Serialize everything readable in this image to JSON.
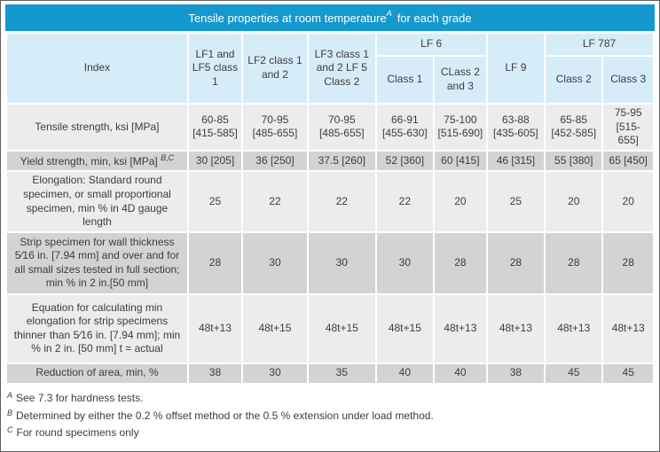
{
  "colors": {
    "title_bar": "#1598CD",
    "header_cell": "#D6EDF9",
    "row_light": "#ECECEC",
    "row_dark": "#D5D3D1",
    "text": "#3C3C3C",
    "title_text": "#FFFFFF"
  },
  "title": {
    "prefix": "Tensile properties at room temperature",
    "superscript": "A",
    "suffix": "for each grade"
  },
  "table": {
    "index_header": "Index",
    "top_headers": {
      "lf1": "LF1 and LF5 class 1",
      "lf2": "LF2 class 1 and 2",
      "lf3": "LF3 class 1 and 2 LF 5 Class 2",
      "lf6_group": "LF 6",
      "lf9": "LF 9",
      "lf787_group": "LF 787"
    },
    "sub_headers": {
      "lf6_class1": "Class 1",
      "lf6_class2_3": "CLass 2 and 3",
      "lf787_class2": "Class 2",
      "lf787_class3": "Class 3"
    },
    "rows": [
      {
        "label": "Tensile strength, ksi [MPa]",
        "label_sup": "",
        "shade": "light",
        "values": [
          "60-85\n[415-585]",
          "70-95\n[485-655]",
          "70-95\n[485-655]",
          "66-91\n[455-630]",
          "75-100\n[515-690]",
          "63-88\n[435-605]",
          "65-85\n[452-585]",
          "75-95\n[515-655]"
        ]
      },
      {
        "label": "Yield strength, min, ksi [MPa]",
        "label_sup": "B,C",
        "shade": "dark",
        "values": [
          "30 [205]",
          "36 [250]",
          "37.5 [260]",
          "52 [360]",
          "60 [415]",
          "46 [315]",
          "55 [380]",
          "65 [450]"
        ]
      },
      {
        "label": "Elongation: Standard round specimen, or small proportional specimen, min % in 4D gauge length",
        "label_sup": "",
        "shade": "light",
        "values": [
          "25",
          "22",
          "22",
          "22",
          "20",
          "25",
          "20",
          "20"
        ]
      },
      {
        "label": "Strip specimen for wall thickness 5⁄16 in. [7.94 mm] and over and for all small sizes tested in full section; min % in 2 in.[50 mm]",
        "label_sup": "",
        "shade": "dark",
        "values": [
          "28",
          "30",
          "30",
          "30",
          "28",
          "28",
          "28",
          "28"
        ]
      },
      {
        "label": "Equation for calculating min elongation for strip specimens thinner than 5⁄16 in. [7.94 mm]; min % in 2 in. [50 mm] t = actual",
        "label_sup": "",
        "shade": "light",
        "values": [
          "48t+13",
          "48t+15",
          "48t+15",
          "48t+15",
          "48t+13",
          "48t+13",
          "48t+13",
          "48t+13"
        ]
      },
      {
        "label": "Reduction of area, min, %",
        "label_sup": "",
        "shade": "dark",
        "values": [
          "38",
          "30",
          "35",
          "40",
          "40",
          "38",
          "45",
          "45"
        ]
      }
    ]
  },
  "footnotes": [
    {
      "marker": "A",
      "text": "See 7.3 for hardness tests."
    },
    {
      "marker": "B",
      "text": "Determined by either the 0.2 % offset method or the 0.5 % extension under load method."
    },
    {
      "marker": "C",
      "text": "For round specimens only"
    }
  ]
}
